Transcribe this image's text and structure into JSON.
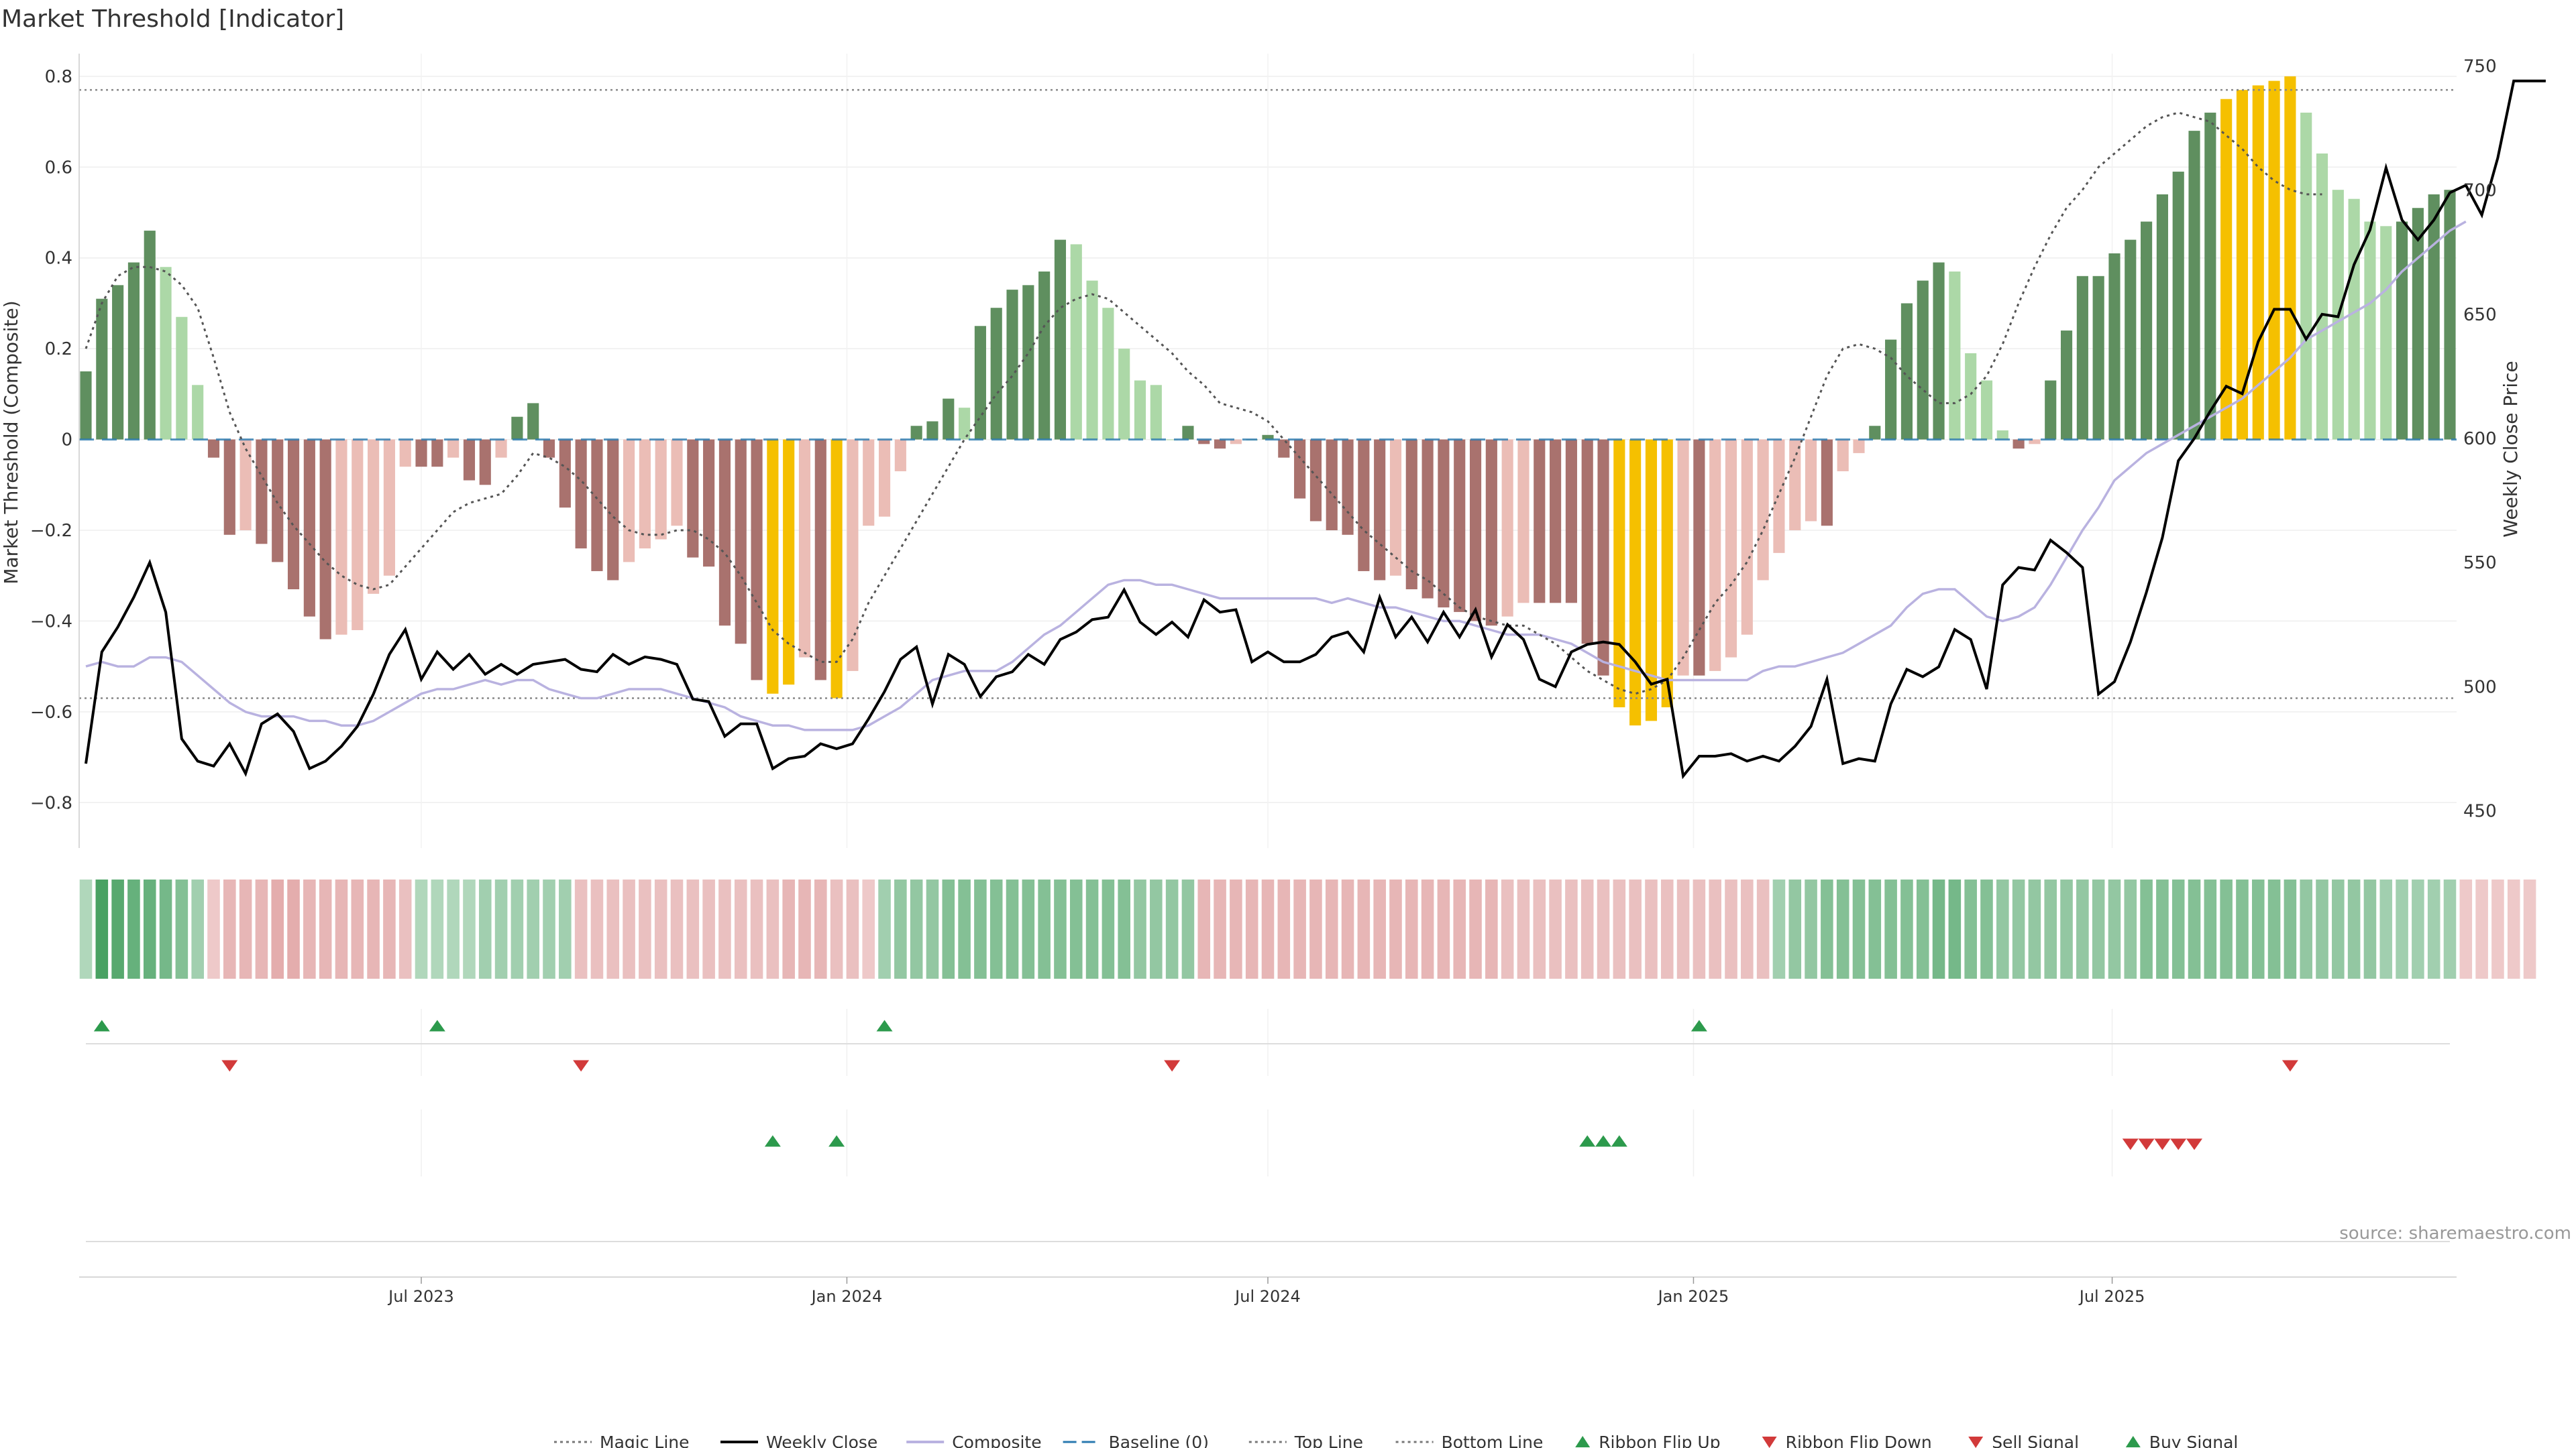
{
  "title": "Market Threshold [Indicator]",
  "source": "source: sharemaestro.com",
  "chart_data": {
    "type": "bar",
    "left_axis": {
      "label": "Market Threshold (Composite)",
      "range": [
        -0.9,
        0.85
      ],
      "ticks": [
        0.8,
        0.6,
        0.4,
        0.2,
        0,
        -0.2,
        -0.4,
        -0.6,
        -0.8
      ],
      "tick_labels": [
        "0.8",
        "0.6",
        "0.4",
        "0.2",
        "0",
        "−0.2",
        "−0.4",
        "−0.6",
        "−0.8"
      ]
    },
    "right_axis": {
      "label": "Weekly Close Price",
      "range": [
        435,
        755
      ],
      "ticks": [
        750,
        700,
        650,
        600,
        550,
        500,
        450
      ],
      "tick_labels": [
        "750",
        "700",
        "650",
        "600",
        "550",
        "500",
        "450"
      ]
    },
    "x_axis": {
      "start": "2023-02-06",
      "end": "2025-11-24",
      "ticks": [
        {
          "label": "Jul 2023",
          "date": "2023-07-01"
        },
        {
          "label": "Jan 2024",
          "date": "2024-01-01"
        },
        {
          "label": "Jul 2024",
          "date": "2024-07-01"
        },
        {
          "label": "Jan 2025",
          "date": "2025-01-01"
        },
        {
          "label": "Jul 2025",
          "date": "2025-07-01"
        }
      ]
    },
    "top_line": 0.77,
    "bottom_line": -0.57,
    "baseline": 0,
    "series": [
      {
        "name": "Market Threshold bars",
        "values": [
          0.15,
          0.31,
          0.34,
          0.39,
          0.46,
          0.38,
          0.27,
          0.12,
          -0.04,
          -0.21,
          -0.2,
          -0.23,
          -0.27,
          -0.33,
          -0.39,
          -0.44,
          -0.43,
          -0.42,
          -0.34,
          -0.3,
          -0.06,
          -0.06,
          -0.06,
          -0.04,
          -0.09,
          -0.1,
          -0.04,
          0.05,
          0.08,
          -0.04,
          -0.15,
          -0.24,
          -0.29,
          -0.31,
          -0.27,
          -0.24,
          -0.22,
          -0.19,
          -0.26,
          -0.28,
          -0.41,
          -0.45,
          -0.53,
          -0.56,
          -0.54,
          -0.48,
          -0.53,
          -0.57,
          -0.51,
          -0.19,
          -0.17,
          -0.07,
          0.03,
          0.04,
          0.09,
          0.07,
          0.25,
          0.29,
          0.33,
          0.34,
          0.37,
          0.44,
          0.43,
          0.35,
          0.29,
          0.2,
          0.13,
          0.12,
          0.0,
          0.03,
          -0.01,
          -0.02,
          -0.01,
          0.0,
          0.01,
          -0.04,
          -0.13,
          -0.18,
          -0.2,
          -0.21,
          -0.29,
          -0.31,
          -0.3,
          -0.33,
          -0.35,
          -0.37,
          -0.38,
          -0.4,
          -0.41,
          -0.39,
          -0.36,
          -0.36,
          -0.36,
          -0.36,
          -0.45,
          -0.52,
          -0.59,
          -0.63,
          -0.62,
          -0.59,
          -0.52,
          -0.52,
          -0.51,
          -0.48,
          -0.43,
          -0.31,
          -0.25,
          -0.2,
          -0.18,
          -0.19,
          -0.07,
          -0.03,
          0.03,
          0.22,
          0.3,
          0.35,
          0.39,
          0.37,
          0.19,
          0.13,
          0.02,
          -0.02,
          -0.01,
          0.13,
          0.24,
          0.36,
          0.36,
          0.41,
          0.44,
          0.48,
          0.54,
          0.59,
          0.68,
          0.72,
          0.75,
          0.77,
          0.78,
          0.79,
          0.8,
          0.72,
          0.63,
          0.55,
          0.53,
          0.48,
          0.47,
          0.48,
          0.51,
          0.54,
          0.55
        ]
      },
      {
        "name": "Magic Line",
        "values": [
          0.2,
          0.3,
          0.36,
          0.38,
          0.38,
          0.37,
          0.34,
          0.29,
          0.18,
          0.06,
          -0.02,
          -0.08,
          -0.14,
          -0.19,
          -0.23,
          -0.27,
          -0.3,
          -0.32,
          -0.33,
          -0.32,
          -0.28,
          -0.24,
          -0.2,
          -0.16,
          -0.14,
          -0.13,
          -0.12,
          -0.08,
          -0.03,
          -0.04,
          -0.06,
          -0.09,
          -0.13,
          -0.17,
          -0.2,
          -0.21,
          -0.21,
          -0.2,
          -0.2,
          -0.22,
          -0.25,
          -0.3,
          -0.36,
          -0.42,
          -0.45,
          -0.47,
          -0.49,
          -0.49,
          -0.44,
          -0.36,
          -0.3,
          -0.24,
          -0.18,
          -0.12,
          -0.06,
          0.0,
          0.05,
          0.1,
          0.14,
          0.19,
          0.25,
          0.29,
          0.31,
          0.32,
          0.31,
          0.28,
          0.25,
          0.22,
          0.19,
          0.15,
          0.12,
          0.08,
          0.07,
          0.06,
          0.04,
          0.0,
          -0.04,
          -0.08,
          -0.12,
          -0.16,
          -0.2,
          -0.23,
          -0.26,
          -0.29,
          -0.31,
          -0.34,
          -0.37,
          -0.39,
          -0.4,
          -0.41,
          -0.41,
          -0.43,
          -0.45,
          -0.48,
          -0.51,
          -0.53,
          -0.55,
          -0.56,
          -0.55,
          -0.53,
          -0.48,
          -0.42,
          -0.36,
          -0.32,
          -0.27,
          -0.2,
          -0.12,
          -0.04,
          0.05,
          0.14,
          0.2,
          0.21,
          0.2,
          0.18,
          0.14,
          0.11,
          0.08,
          0.08,
          0.1,
          0.14,
          0.21,
          0.3,
          0.38,
          0.45,
          0.51,
          0.55,
          0.6,
          0.63,
          0.66,
          0.69,
          0.71,
          0.72,
          0.71,
          0.7,
          0.67,
          0.64,
          0.6,
          0.57,
          0.55,
          0.54,
          0.54
        ]
      },
      {
        "name": "Weekly Close",
        "values": [
          469,
          514,
          524,
          536,
          550,
          530,
          479,
          470,
          468,
          477,
          465,
          485,
          489,
          482,
          467,
          470,
          476,
          484,
          497,
          513,
          523,
          503,
          514,
          507,
          513,
          505,
          509,
          505,
          509,
          510,
          511,
          507,
          506,
          513,
          509,
          512,
          511,
          509,
          495,
          494,
          480,
          485,
          485,
          467,
          471,
          472,
          477,
          475,
          477,
          487,
          498,
          511,
          516,
          493,
          513,
          509,
          496,
          504,
          506,
          513,
          509,
          519,
          522,
          527,
          528,
          539,
          526,
          521,
          526,
          520,
          535,
          530,
          531,
          510,
          514,
          510,
          510,
          513,
          520,
          522,
          514,
          536,
          520,
          528,
          518,
          530,
          520,
          531,
          512,
          525,
          519,
          503,
          500,
          514,
          517,
          518,
          517,
          510,
          501,
          503,
          464,
          472,
          472,
          473,
          470,
          472,
          470,
          476,
          484,
          503,
          469,
          471,
          470,
          493,
          507,
          504,
          508,
          523,
          519,
          499,
          541,
          548,
          547,
          559,
          554,
          548,
          497,
          502,
          518,
          538,
          560,
          591,
          600,
          611,
          621,
          618,
          639,
          652,
          652,
          640,
          650,
          649,
          670,
          684,
          709,
          688,
          680,
          688,
          699,
          702,
          690,
          713,
          744,
          744,
          744
        ]
      },
      {
        "name": "Composite",
        "values": [
          -0.5,
          -0.49,
          -0.5,
          -0.5,
          -0.48,
          -0.48,
          -0.49,
          -0.52,
          -0.55,
          -0.58,
          -0.6,
          -0.61,
          -0.61,
          -0.61,
          -0.62,
          -0.62,
          -0.63,
          -0.63,
          -0.62,
          -0.6,
          -0.58,
          -0.56,
          -0.55,
          -0.55,
          -0.54,
          -0.53,
          -0.54,
          -0.53,
          -0.53,
          -0.55,
          -0.56,
          -0.57,
          -0.57,
          -0.56,
          -0.55,
          -0.55,
          -0.55,
          -0.56,
          -0.57,
          -0.58,
          -0.59,
          -0.61,
          -0.62,
          -0.63,
          -0.63,
          -0.64,
          -0.64,
          -0.64,
          -0.64,
          -0.63,
          -0.61,
          -0.59,
          -0.56,
          -0.53,
          -0.52,
          -0.51,
          -0.51,
          -0.51,
          -0.49,
          -0.46,
          -0.43,
          -0.41,
          -0.38,
          -0.35,
          -0.32,
          -0.31,
          -0.31,
          -0.32,
          -0.32,
          -0.33,
          -0.34,
          -0.35,
          -0.35,
          -0.35,
          -0.35,
          -0.35,
          -0.35,
          -0.35,
          -0.36,
          -0.35,
          -0.36,
          -0.37,
          -0.37,
          -0.38,
          -0.39,
          -0.4,
          -0.4,
          -0.41,
          -0.42,
          -0.43,
          -0.43,
          -0.43,
          -0.44,
          -0.45,
          -0.47,
          -0.49,
          -0.5,
          -0.51,
          -0.52,
          -0.53,
          -0.53,
          -0.53,
          -0.53,
          -0.53,
          -0.53,
          -0.51,
          -0.5,
          -0.5,
          -0.49,
          -0.48,
          -0.47,
          -0.45,
          -0.43,
          -0.41,
          -0.37,
          -0.34,
          -0.33,
          -0.33,
          -0.36,
          -0.39,
          -0.4,
          -0.39,
          -0.37,
          -0.32,
          -0.26,
          -0.2,
          -0.15,
          -0.09,
          -0.06,
          -0.03,
          -0.01,
          0.01,
          0.03,
          0.05,
          0.07,
          0.09,
          0.12,
          0.15,
          0.18,
          0.22,
          0.24,
          0.26,
          0.28,
          0.3,
          0.33,
          0.37,
          0.4,
          0.43,
          0.46,
          0.48
        ]
      }
    ],
    "ribbon_scores": [
      0.2,
      0.9,
      0.8,
      0.7,
      0.7,
      0.6,
      0.5,
      0.3,
      -0.2,
      -0.4,
      -0.4,
      -0.4,
      -0.5,
      -0.5,
      -0.4,
      -0.4,
      -0.4,
      -0.4,
      -0.4,
      -0.4,
      -0.3,
      0.2,
      0.2,
      0.2,
      0.2,
      0.3,
      0.3,
      0.3,
      0.3,
      0.3,
      0.3,
      -0.3,
      -0.3,
      -0.3,
      -0.3,
      -0.3,
      -0.3,
      -0.3,
      -0.3,
      -0.3,
      -0.3,
      -0.3,
      -0.3,
      -0.3,
      -0.4,
      -0.4,
      -0.4,
      -0.3,
      -0.3,
      -0.2,
      0.3,
      0.4,
      0.4,
      0.4,
      0.5,
      0.5,
      0.5,
      0.5,
      0.5,
      0.5,
      0.5,
      0.5,
      0.5,
      0.5,
      0.5,
      0.5,
      0.4,
      0.4,
      0.4,
      0.4,
      -0.4,
      -0.4,
      -0.4,
      -0.4,
      -0.4,
      -0.4,
      -0.4,
      -0.4,
      -0.4,
      -0.4,
      -0.4,
      -0.4,
      -0.4,
      -0.4,
      -0.4,
      -0.4,
      -0.4,
      -0.4,
      -0.4,
      -0.3,
      -0.3,
      -0.3,
      -0.3,
      -0.3,
      -0.3,
      -0.3,
      -0.3,
      -0.3,
      -0.3,
      -0.3,
      -0.3,
      -0.3,
      -0.3,
      -0.3,
      -0.3,
      -0.3,
      0.3,
      0.4,
      0.4,
      0.5,
      0.5,
      0.5,
      0.5,
      0.5,
      0.5,
      0.5,
      0.6,
      0.6,
      0.5,
      0.5,
      0.4,
      0.4,
      0.4,
      0.4,
      0.4,
      0.4,
      0.4,
      0.4,
      0.4,
      0.5,
      0.5,
      0.5,
      0.5,
      0.5,
      0.5,
      0.5,
      0.5,
      0.5,
      0.5,
      0.4,
      0.4,
      0.4,
      0.4,
      0.4,
      0.3,
      0.3,
      0.3,
      0.3,
      0.3,
      -0.2,
      -0.2,
      -0.2,
      -0.2,
      -0.2
    ],
    "ribbon_flip_up": [
      1,
      22,
      50,
      101
    ],
    "ribbon_flip_down": [
      9,
      31,
      68,
      138
    ],
    "buy_signals": [
      43,
      47,
      94,
      95,
      96
    ],
    "sell_signals": [
      128,
      129,
      130,
      131,
      132
    ],
    "colors": {
      "bar_strong_pos": "#5f8f5f",
      "bar_weak_pos": "#acd8a7",
      "bar_strong_neg": "#a9726e",
      "bar_weak_neg": "#ebbdb6",
      "bar_extreme": "#f5c000",
      "weekly_close": "#000000",
      "composite": "#b9b2e0",
      "magic_line": "#555555",
      "baseline": "#2a7ab0",
      "ribbon_pos": "#3a9a56",
      "ribbon_neg": "#d98a8a",
      "flip_up": "#2c9a4c",
      "flip_down": "#d23a3a"
    },
    "legend": {
      "placement": "bottom-center",
      "items": [
        {
          "label": "Magic Line",
          "icon": "dotted-line-icon"
        },
        {
          "label": "Weekly Close",
          "icon": "solid-line-icon"
        },
        {
          "label": "Composite",
          "icon": "lavender-line-icon"
        },
        {
          "label": "Baseline (0)",
          "icon": "dashed-line-icon"
        },
        {
          "label": "Top Line",
          "icon": "dotted-line-icon"
        },
        {
          "label": "Bottom Line",
          "icon": "dotted-line-icon"
        },
        {
          "label": "Ribbon Flip Up",
          "icon": "green-triangle-up-icon"
        },
        {
          "label": "Ribbon Flip Down",
          "icon": "red-triangle-down-icon"
        },
        {
          "label": "Sell Signal",
          "icon": "red-triangle-down-icon"
        },
        {
          "label": "Buy Signal",
          "icon": "green-triangle-up-icon"
        }
      ]
    }
  }
}
